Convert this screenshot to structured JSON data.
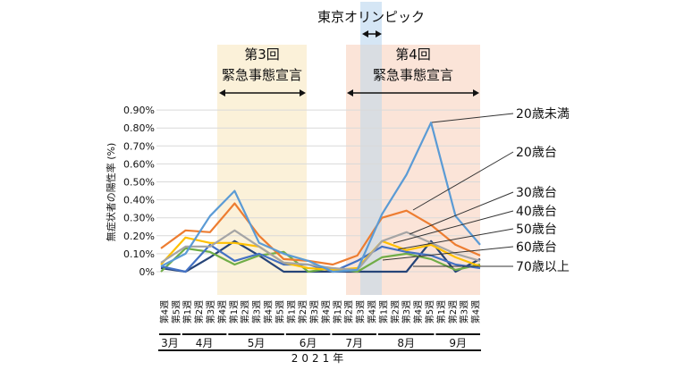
{
  "chart_data": {
    "type": "line",
    "title": "",
    "ylabel": "無症状者の陽性率 (%)",
    "xlabel": "2021年",
    "ylim": [
      0,
      0.9
    ],
    "yticks": [
      "0%",
      "0.10%",
      "0.20%",
      "0.30%",
      "0.40%",
      "0.50%",
      "0.60%",
      "0.70%",
      "0.80%",
      "0.90%"
    ],
    "grid": true,
    "week_labels": [
      "第4週",
      "第5週",
      "第1週",
      "第2週",
      "第3週",
      "第4週",
      "第1週",
      "第2週",
      "第3週",
      "第4週",
      "第5週",
      "第1週",
      "第2週",
      "第3週",
      "第4週",
      "第1週",
      "第2週",
      "第3週",
      "第4週",
      "第1週",
      "第2週",
      "第3週",
      "第4週",
      "第5週",
      "第1週",
      "第2週",
      "第3週",
      "第4週"
    ],
    "months": [
      {
        "label": "3月",
        "start": 0,
        "end": 1
      },
      {
        "label": "4月",
        "start": 2,
        "end": 5
      },
      {
        "label": "5月",
        "start": 6,
        "end": 10
      },
      {
        "label": "6月",
        "start": 11,
        "end": 14
      },
      {
        "label": "7月",
        "start": 15,
        "end": 18
      },
      {
        "label": "8月",
        "start": 19,
        "end": 23
      },
      {
        "label": "9月",
        "start": 24,
        "end": 27
      }
    ],
    "series": [
      {
        "name": "20歳未満",
        "color": "#5b9bd5",
        "values": [
          0.03,
          0.1,
          0.31,
          0.45,
          0.16,
          0.1,
          0.06,
          0.0,
          0.01,
          0.32,
          0.54,
          0.83,
          0.31,
          0.15
        ]
      },
      {
        "name": "20歳台",
        "color": "#ed7d31",
        "values": [
          0.13,
          0.23,
          0.22,
          0.38,
          0.2,
          0.07,
          0.06,
          0.04,
          0.09,
          0.3,
          0.34,
          0.26,
          0.15,
          0.09
        ]
      },
      {
        "name": "30歳台",
        "color": "#a5a5a5",
        "values": [
          0.05,
          0.14,
          0.14,
          0.23,
          0.14,
          0.05,
          0.04,
          0.02,
          0.01,
          0.17,
          0.22,
          0.16,
          0.1,
          0.06
        ]
      },
      {
        "name": "40歳台",
        "color": "#ffc000",
        "values": [
          0.04,
          0.19,
          0.16,
          0.16,
          0.14,
          0.05,
          0.02,
          0.01,
          0.02,
          0.17,
          0.12,
          0.15,
          0.08,
          0.03
        ]
      },
      {
        "name": "50歳台",
        "color": "#4472c4",
        "values": [
          0.03,
          0.0,
          0.15,
          0.06,
          0.1,
          0.04,
          0.04,
          0.0,
          0.06,
          0.14,
          0.11,
          0.09,
          0.04,
          0.02
        ]
      },
      {
        "name": "60歳台",
        "color": "#70ad47",
        "values": [
          0.0,
          0.13,
          0.11,
          0.04,
          0.09,
          0.11,
          0.0,
          0.02,
          0.0,
          0.08,
          0.1,
          0.07,
          0.01,
          0.04
        ]
      },
      {
        "name": "70歳以上",
        "color": "#264478",
        "values": [
          0.02,
          0.0,
          0.08,
          0.17,
          0.09,
          0.0,
          0.0,
          0.0,
          0.0,
          0.0,
          0.0,
          0.17,
          0.0,
          0.07
        ]
      }
    ],
    "annotations": {
      "olympics": "東京オリンピック",
      "emergency3_line1": "第3回",
      "emergency3_line2": "緊急事態宣言",
      "emergency4_line1": "第4回",
      "emergency4_line2": "緊急事態宣言"
    },
    "colors": {
      "band3": "#fbf1d9",
      "band4": "#fbe4d8",
      "olympic": "#d5e6f5",
      "olympic_overlap": "#d9dde2"
    }
  }
}
